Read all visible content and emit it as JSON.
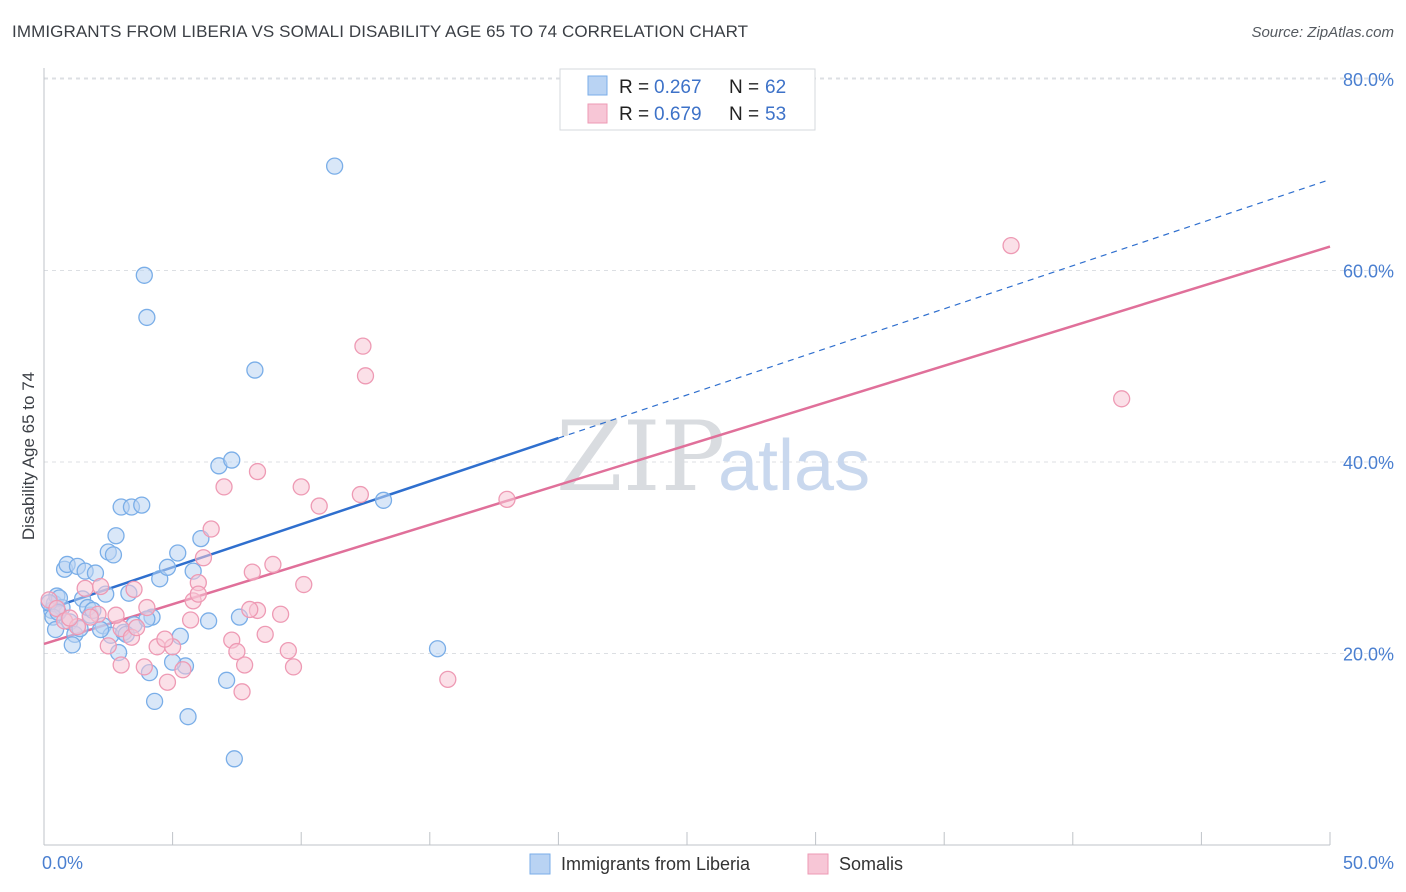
{
  "title": "IMMIGRANTS FROM LIBERIA VS SOMALI DISABILITY AGE 65 TO 74 CORRELATION CHART",
  "source": "Source: ZipAtlas.com",
  "watermark": {
    "zip": "ZIP",
    "atlas": "atlas"
  },
  "chart_data": {
    "type": "scatter",
    "title": "IMMIGRANTS FROM LIBERIA VS SOMALI DISABILITY AGE 65 TO 74 CORRELATION CHART",
    "xlabel": "",
    "ylabel": "Disability Age 65 to 74",
    "xlim": [
      0,
      50
    ],
    "ylim": [
      0,
      82
    ],
    "x_tick_labels": {
      "left": "0.0%",
      "right": "50.0%"
    },
    "y_ticks": [
      {
        "value": 20,
        "label": "20.0%"
      },
      {
        "value": 40,
        "label": "40.0%"
      },
      {
        "value": 60,
        "label": "60.0%"
      },
      {
        "value": 80,
        "label": "80.0%"
      }
    ],
    "legend": [
      {
        "r_label": "R =",
        "r": "0.267",
        "n_label": "N =",
        "n": "62"
      },
      {
        "r_label": "R =",
        "r": "0.679",
        "n_label": "N =",
        "n": "53"
      }
    ],
    "series": [
      {
        "name": "Immigrants from Liberia",
        "color": "#7aaee8",
        "fill": "#b9d3f3",
        "trend": {
          "x0": 0,
          "y0": 24.5,
          "x1": 20,
          "y1": 42.5,
          "solid_to": 20,
          "dashed_to": 50,
          "y_at_50": 69.5,
          "color": "#2f6fce"
        },
        "points": [
          [
            0.3,
            24.5
          ],
          [
            0.4,
            25.2
          ],
          [
            0.5,
            26.0
          ],
          [
            0.7,
            24.8
          ],
          [
            0.8,
            28.8
          ],
          [
            1.0,
            23.3
          ],
          [
            1.2,
            22.0
          ],
          [
            1.5,
            25.7
          ],
          [
            1.8,
            24.0
          ],
          [
            0.9,
            29.3
          ],
          [
            1.3,
            29.1
          ],
          [
            1.6,
            28.6
          ],
          [
            2.0,
            28.4
          ],
          [
            2.3,
            22.9
          ],
          [
            1.1,
            20.9
          ],
          [
            2.6,
            21.9
          ],
          [
            3.1,
            22.2
          ],
          [
            3.5,
            23.0
          ],
          [
            4.2,
            23.8
          ],
          [
            3.0,
            35.3
          ],
          [
            3.4,
            35.3
          ],
          [
            3.8,
            35.5
          ],
          [
            2.8,
            32.3
          ],
          [
            2.5,
            30.6
          ],
          [
            3.3,
            26.3
          ],
          [
            4.0,
            23.6
          ],
          [
            4.5,
            27.8
          ],
          [
            5.2,
            30.5
          ],
          [
            5.8,
            28.6
          ],
          [
            6.1,
            32.0
          ],
          [
            4.8,
            29.0
          ],
          [
            2.2,
            22.5
          ],
          [
            1.7,
            24.8
          ],
          [
            0.6,
            25.8
          ],
          [
            0.2,
            25.3
          ],
          [
            0.35,
            23.8
          ],
          [
            0.55,
            24.3
          ],
          [
            1.4,
            22.6
          ],
          [
            2.9,
            20.1
          ],
          [
            3.2,
            22.0
          ],
          [
            4.1,
            18.0
          ],
          [
            4.3,
            15.0
          ],
          [
            5.5,
            18.7
          ],
          [
            5.6,
            13.4
          ],
          [
            6.4,
            23.4
          ],
          [
            7.1,
            17.2
          ],
          [
            7.4,
            9.0
          ],
          [
            7.6,
            23.8
          ],
          [
            6.8,
            39.6
          ],
          [
            7.3,
            40.2
          ],
          [
            8.2,
            49.6
          ],
          [
            4.0,
            55.1
          ],
          [
            3.9,
            59.5
          ],
          [
            11.3,
            70.9
          ],
          [
            13.2,
            36.0
          ],
          [
            15.3,
            20.5
          ],
          [
            2.7,
            30.3
          ],
          [
            2.4,
            26.2
          ],
          [
            1.9,
            24.5
          ],
          [
            0.45,
            22.5
          ],
          [
            5.3,
            21.8
          ],
          [
            5.0,
            19.1
          ]
        ]
      },
      {
        "name": "Somalis",
        "color": "#ee9ab4",
        "fill": "#f7c6d6",
        "trend": {
          "x0": 0,
          "y0": 21.0,
          "x1": 50,
          "y1": 62.5,
          "color": "#e0709a"
        },
        "points": [
          [
            0.2,
            25.6
          ],
          [
            0.5,
            24.7
          ],
          [
            0.8,
            23.4
          ],
          [
            1.3,
            22.8
          ],
          [
            1.6,
            26.8
          ],
          [
            2.1,
            24.1
          ],
          [
            2.5,
            20.8
          ],
          [
            3.0,
            22.6
          ],
          [
            3.5,
            26.7
          ],
          [
            3.4,
            21.7
          ],
          [
            3.0,
            18.8
          ],
          [
            3.9,
            18.6
          ],
          [
            4.4,
            20.7
          ],
          [
            4.8,
            17.0
          ],
          [
            5.0,
            20.7
          ],
          [
            5.4,
            18.3
          ],
          [
            5.8,
            25.5
          ],
          [
            6.0,
            27.4
          ],
          [
            6.2,
            30.0
          ],
          [
            6.5,
            33.0
          ],
          [
            6.0,
            26.2
          ],
          [
            7.3,
            21.4
          ],
          [
            7.5,
            20.2
          ],
          [
            7.8,
            18.8
          ],
          [
            8.1,
            28.5
          ],
          [
            8.3,
            24.5
          ],
          [
            8.6,
            22.0
          ],
          [
            8.9,
            29.3
          ],
          [
            9.2,
            24.1
          ],
          [
            9.5,
            20.3
          ],
          [
            9.7,
            18.6
          ],
          [
            10.1,
            27.2
          ],
          [
            10.7,
            35.4
          ],
          [
            12.3,
            36.6
          ],
          [
            12.4,
            52.1
          ],
          [
            12.5,
            49.0
          ],
          [
            8.0,
            24.6
          ],
          [
            8.3,
            39.0
          ],
          [
            10.0,
            37.4
          ],
          [
            7.0,
            37.4
          ],
          [
            15.7,
            17.3
          ],
          [
            18.0,
            36.1
          ],
          [
            37.6,
            62.6
          ],
          [
            41.9,
            46.6
          ],
          [
            1.8,
            23.8
          ],
          [
            2.2,
            27.0
          ],
          [
            4.0,
            24.8
          ],
          [
            4.7,
            21.5
          ],
          [
            2.8,
            24.0
          ],
          [
            1.0,
            23.7
          ],
          [
            3.6,
            22.7
          ],
          [
            5.7,
            23.5
          ],
          [
            7.7,
            16.0
          ]
        ]
      }
    ]
  }
}
